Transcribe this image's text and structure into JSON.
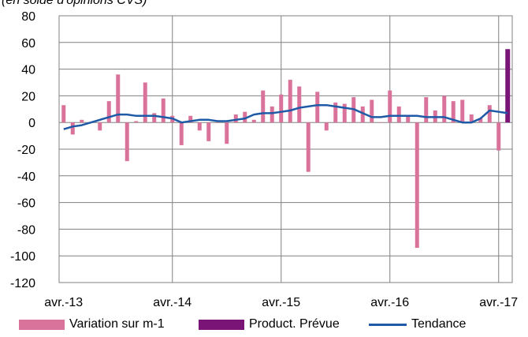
{
  "chart_data": {
    "type": "bar",
    "subtitle": "(en solde d'opinions CVS)",
    "ylim": [
      -120,
      80
    ],
    "yticks": [
      80,
      60,
      40,
      20,
      0,
      -20,
      -40,
      -60,
      -80,
      -100,
      -120
    ],
    "xtick_labels": [
      "avr.-13",
      "avr.-14",
      "avr.-15",
      "avr.-16",
      "avr.-17"
    ],
    "grid": true,
    "legend_position": "bottom",
    "series": [
      {
        "name": "Variation sur m-1",
        "type": "bar",
        "color": "#D9739B",
        "values": [
          13,
          -9,
          2,
          0,
          -6,
          16,
          36,
          -29,
          1,
          30,
          7,
          18,
          5,
          -17,
          5,
          -6,
          -14,
          0,
          -16,
          6,
          8,
          2,
          24,
          12,
          21,
          32,
          27,
          -37,
          23,
          -6,
          15,
          14,
          19,
          12,
          17,
          0,
          24,
          12,
          5,
          -94,
          19,
          9,
          20,
          16,
          17,
          6,
          3,
          13,
          -21
        ]
      },
      {
        "name": "Product. Prévue",
        "type": "bar",
        "color": "#7A1477",
        "values": [
          55
        ]
      },
      {
        "name": "Tendance",
        "type": "line",
        "color": "#1F5AA6",
        "values": [
          -5,
          -3,
          -2,
          0,
          2,
          4,
          6,
          6,
          5,
          5,
          5,
          4,
          3,
          0,
          1,
          2,
          2,
          1,
          1,
          2,
          3,
          6,
          7,
          7,
          8,
          9,
          11,
          12,
          13,
          13,
          12,
          11,
          10,
          7,
          4,
          4,
          5,
          5,
          5,
          5,
          4,
          4,
          4,
          2,
          0,
          0,
          3,
          9,
          8,
          7
        ]
      }
    ]
  }
}
